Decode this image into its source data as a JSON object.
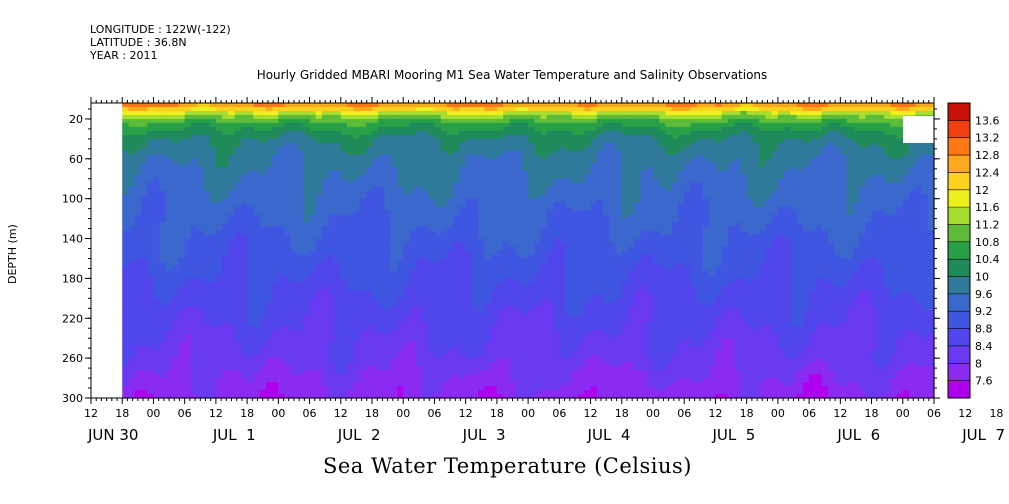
{
  "header": {
    "longitude": "LONGITUDE : 122W(-122)",
    "latitude": "LATITUDE : 36.8N",
    "year": "YEAR : 2011"
  },
  "chart_data": {
    "type": "heatmap",
    "title": "Hourly Gridded MBARI Mooring M1 Sea Water Temperature and Salinity Observations",
    "caption": "Sea Water Temperature (Celsius)",
    "ylabel": "DEPTH (m)",
    "yticks": [
      20,
      60,
      100,
      140,
      180,
      220,
      260,
      300
    ],
    "ylim": [
      300,
      4
    ],
    "y_direction": "depth increases downward",
    "x_hour_ticks": [
      "12",
      "18",
      "00",
      "06",
      "12",
      "18",
      "00",
      "06",
      "12",
      "18",
      "00",
      "06",
      "12",
      "18",
      "00",
      "06",
      "12",
      "18",
      "00",
      "06",
      "12",
      "18",
      "00",
      "06",
      "12",
      "18",
      "00",
      "06",
      "12",
      "18",
      "00",
      "06"
    ],
    "x_day_labels": [
      "JUN 30",
      "JUL  1",
      "JUL  2",
      "JUL  3",
      "JUL  4",
      "JUL  5",
      "JUL  6",
      "JUL  7"
    ],
    "x_range_hours": [
      0,
      162
    ],
    "data_start_hour": 6,
    "colorbar": {
      "levels": [
        7.6,
        8,
        8.4,
        8.8,
        9.2,
        9.6,
        10,
        10.4,
        10.8,
        11.2,
        11.6,
        12,
        12.4,
        12.8,
        13.2,
        13.6
      ],
      "colors": [
        "#b000f0",
        "#8a2bf2",
        "#6a3af2",
        "#5046ec",
        "#3f56e0",
        "#3a68cc",
        "#2f7a9a",
        "#1f8a5a",
        "#28a048",
        "#5cbc3a",
        "#a6dd2e",
        "#eef01e",
        "#ffd21e",
        "#ffa81e",
        "#ff7818",
        "#f04010",
        "#c81008"
      ]
    },
    "temperature_profile": [
      {
        "depth": 4,
        "temp": 13.0
      },
      {
        "depth": 10,
        "temp": 12.2
      },
      {
        "depth": 15,
        "temp": 11.4
      },
      {
        "depth": 25,
        "temp": 10.6
      },
      {
        "depth": 40,
        "temp": 10.0
      },
      {
        "depth": 60,
        "temp": 9.7
      },
      {
        "depth": 100,
        "temp": 9.4
      },
      {
        "depth": 140,
        "temp": 9.1
      },
      {
        "depth": 180,
        "temp": 8.8
      },
      {
        "depth": 220,
        "temp": 8.5
      },
      {
        "depth": 260,
        "temp": 8.2
      },
      {
        "depth": 300,
        "temp": 7.8
      }
    ]
  }
}
